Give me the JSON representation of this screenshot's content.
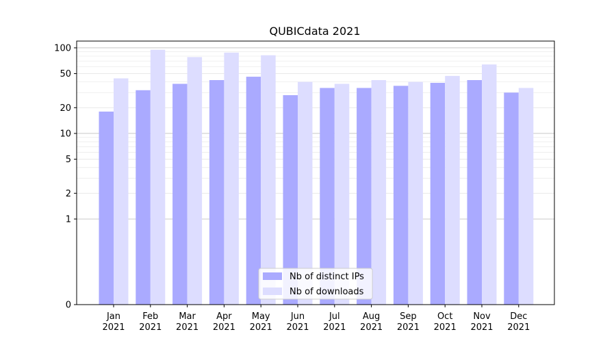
{
  "chart_data": {
    "type": "bar",
    "title": "QUBICdata 2021",
    "xlabel": "",
    "ylabel": "",
    "scale": "symlog",
    "ylim": [
      0,
      120
    ],
    "yticks": [
      0,
      1,
      2,
      5,
      10,
      20,
      50,
      100
    ],
    "grid": true,
    "legend_position": "bottom-center",
    "categories": [
      [
        "Jan",
        "2021"
      ],
      [
        "Feb",
        "2021"
      ],
      [
        "Mar",
        "2021"
      ],
      [
        "Apr",
        "2021"
      ],
      [
        "May",
        "2021"
      ],
      [
        "Jun",
        "2021"
      ],
      [
        "Jul",
        "2021"
      ],
      [
        "Aug",
        "2021"
      ],
      [
        "Sep",
        "2021"
      ],
      [
        "Oct",
        "2021"
      ],
      [
        "Nov",
        "2021"
      ],
      [
        "Dec",
        "2021"
      ]
    ],
    "series": [
      {
        "name": "Nb of distinct IPs",
        "color": "#aaaaff",
        "values": [
          18,
          32,
          38,
          42,
          46,
          28,
          34,
          34,
          36,
          39,
          42,
          30
        ]
      },
      {
        "name": "Nb of downloads",
        "color": "#ddddff",
        "values": [
          44,
          95,
          78,
          88,
          82,
          40,
          38,
          42,
          40,
          47,
          64,
          34
        ]
      }
    ]
  }
}
